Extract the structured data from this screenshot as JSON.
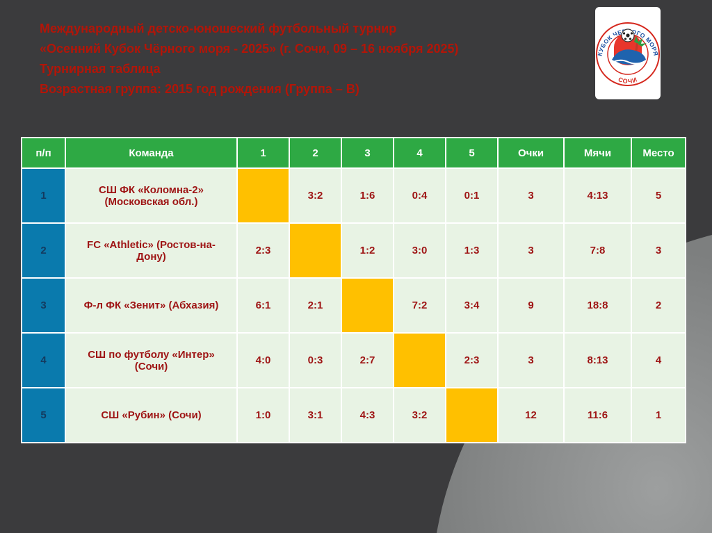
{
  "slide": {
    "title_lines": [
      "Международный детско-юношеский футбольный турнир",
      "«Осенний Кубок Чёрного моря - 2025» (г. Сочи, 09 – 16 ноября 2025)",
      "Турнирная таблица",
      "Возрастная группа: 2015 год рождения (Группа – В)"
    ]
  },
  "logo": {
    "ring_text_top": "КУБОК ЧЕРНОГО МОРЯ",
    "ring_text_bottom": "СОЧИ"
  },
  "colors": {
    "background": "#3b3b3d",
    "swoosh_light": "#9d9f9f",
    "swoosh_dark": "#7d7f7f",
    "title_text": "#b31508",
    "header_green": "#2ea944",
    "num_col_blue": "#0a7aad",
    "cell_green": "#e8f3e4",
    "diagonal_orange": "#ffc000",
    "score_text": "#9e1414",
    "header_text": "#ffffff",
    "num_text": "#143a5e",
    "border_white": "#ffffff"
  },
  "table": {
    "columns": [
      "п/п",
      "Команда",
      "1",
      "2",
      "3",
      "4",
      "5",
      "Очки",
      "Мячи",
      "Место"
    ],
    "rows": [
      {
        "num": "1",
        "team": "СШ ФК «Коломна-2» (Московская обл.)",
        "scores": [
          "",
          "3:2",
          "1:6",
          "0:4",
          "0:1"
        ],
        "diagonal": 0,
        "points": "3",
        "goals": "4:13",
        "place": "5"
      },
      {
        "num": "2",
        "team": "FC «Athletic» (Ростов-на-Дону)",
        "scores": [
          "2:3",
          "",
          "1:2",
          "3:0",
          "1:3"
        ],
        "diagonal": 1,
        "points": "3",
        "goals": "7:8",
        "place": "3"
      },
      {
        "num": "3",
        "team": "Ф-л ФК «Зенит» (Абхазия)",
        "scores": [
          "6:1",
          "2:1",
          "",
          "7:2",
          "3:4"
        ],
        "diagonal": 2,
        "points": "9",
        "goals": "18:8",
        "place": "2"
      },
      {
        "num": "4",
        "team": "СШ по футболу «Интер» (Сочи)",
        "scores": [
          "4:0",
          "0:3",
          "2:7",
          "",
          "2:3"
        ],
        "diagonal": 3,
        "points": "3",
        "goals": "8:13",
        "place": "4"
      },
      {
        "num": "5",
        "team": "СШ «Рубин» (Сочи)",
        "scores": [
          "1:0",
          "3:1",
          "4:3",
          "3:2",
          ""
        ],
        "diagonal": 4,
        "points": "12",
        "goals": "11:6",
        "place": "1"
      }
    ]
  }
}
